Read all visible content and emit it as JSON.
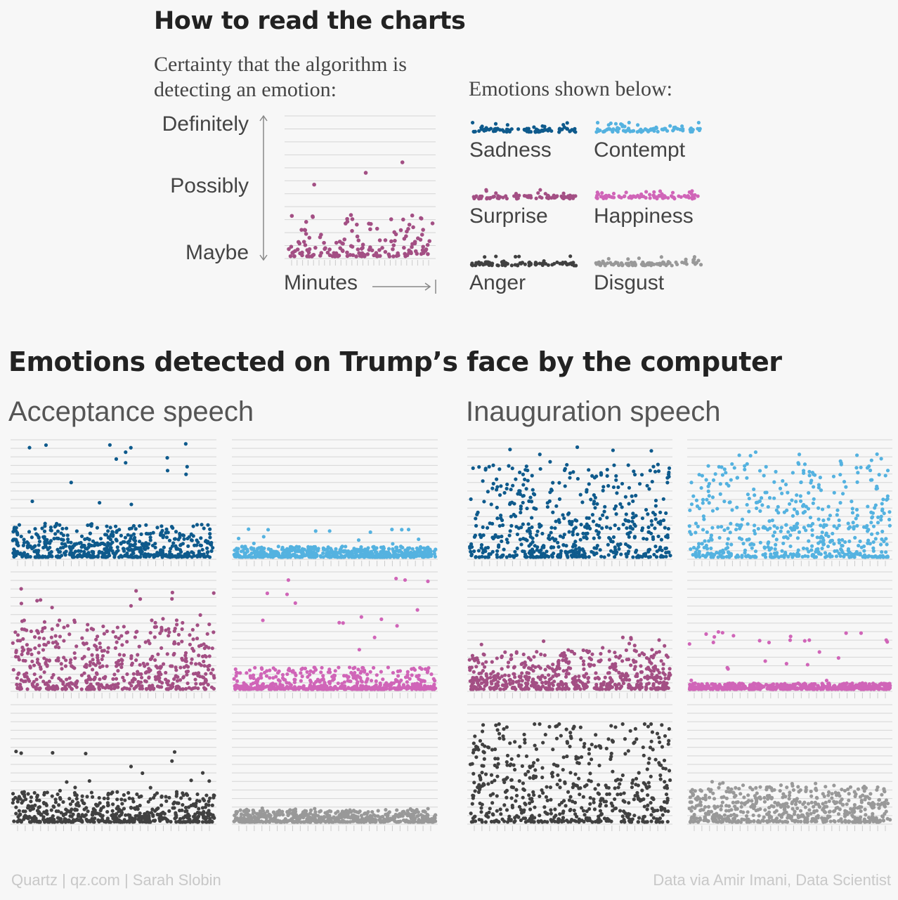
{
  "guide": {
    "title": "How to read the charts",
    "subtitle": "Certainty that the algorithm is detecting an emotion:",
    "y_labels": {
      "top": "Definitely",
      "mid": "Possibly",
      "low": "Maybe"
    },
    "x_label": "Minutes",
    "legend_heading": "Emotions shown below:"
  },
  "emotions": [
    {
      "name": "Sadness",
      "color": "#0e5a8c"
    },
    {
      "name": "Contempt",
      "color": "#54b2e0"
    },
    {
      "name": "Surprise",
      "color": "#a34f84"
    },
    {
      "name": "Happiness",
      "color": "#d065b8"
    },
    {
      "name": "Anger",
      "color": "#404040"
    },
    {
      "name": "Disgust",
      "color": "#999999"
    }
  ],
  "main_title": "Emotions detected on Trump’s face by the computer",
  "speeches": [
    {
      "name": "Acceptance speech"
    },
    {
      "name": "Inauguration speech"
    }
  ],
  "footer": {
    "left": "Quartz | qz.com | Sarah Slobin",
    "right": "Data via Amir Imani, Data Scientist"
  },
  "chart_data": {
    "type": "scatter",
    "y_scale": "certainty, from Maybe to Definitely (0–1)",
    "ylim": [
      0,
      1
    ],
    "grid": true,
    "panels": [
      {
        "speech": "Acceptance speech",
        "emotion": "Sadness",
        "base": 0.1,
        "tail": 0.12,
        "max": 0.99,
        "seed": 11
      },
      {
        "speech": "Acceptance speech",
        "emotion": "Contempt",
        "base": 0.03,
        "tail": 0.04,
        "max": 0.25,
        "seed": 12
      },
      {
        "speech": "Acceptance speech",
        "emotion": "Surprise",
        "base": 0.2,
        "tail": 0.25,
        "max": 0.9,
        "seed": 13
      },
      {
        "speech": "Acceptance speech",
        "emotion": "Happiness",
        "base": 0.03,
        "tail": 0.1,
        "max": 0.97,
        "seed": 14
      },
      {
        "speech": "Acceptance speech",
        "emotion": "Anger",
        "base": 0.07,
        "tail": 0.12,
        "max": 0.62,
        "seed": 15
      },
      {
        "speech": "Acceptance speech",
        "emotion": "Disgust",
        "base": 0.04,
        "tail": 0.04,
        "max": 0.12,
        "seed": 16
      },
      {
        "speech": "Inauguration speech",
        "emotion": "Sadness",
        "base": 0.25,
        "tail": 0.35,
        "max": 0.97,
        "seed": 21
      },
      {
        "speech": "Inauguration speech",
        "emotion": "Contempt",
        "base": 0.25,
        "tail": 0.35,
        "max": 0.96,
        "seed": 22
      },
      {
        "speech": "Inauguration speech",
        "emotion": "Surprise",
        "base": 0.1,
        "tail": 0.15,
        "max": 0.45,
        "seed": 23
      },
      {
        "speech": "Inauguration speech",
        "emotion": "Happiness",
        "base": 0.02,
        "tail": 0.02,
        "max": 0.5,
        "seed": 24
      },
      {
        "speech": "Inauguration speech",
        "emotion": "Anger",
        "base": 0.3,
        "tail": 0.35,
        "max": 0.85,
        "seed": 25
      },
      {
        "speech": "Inauguration speech",
        "emotion": "Disgust",
        "base": 0.12,
        "tail": 0.12,
        "max": 0.35,
        "seed": 26
      }
    ]
  }
}
